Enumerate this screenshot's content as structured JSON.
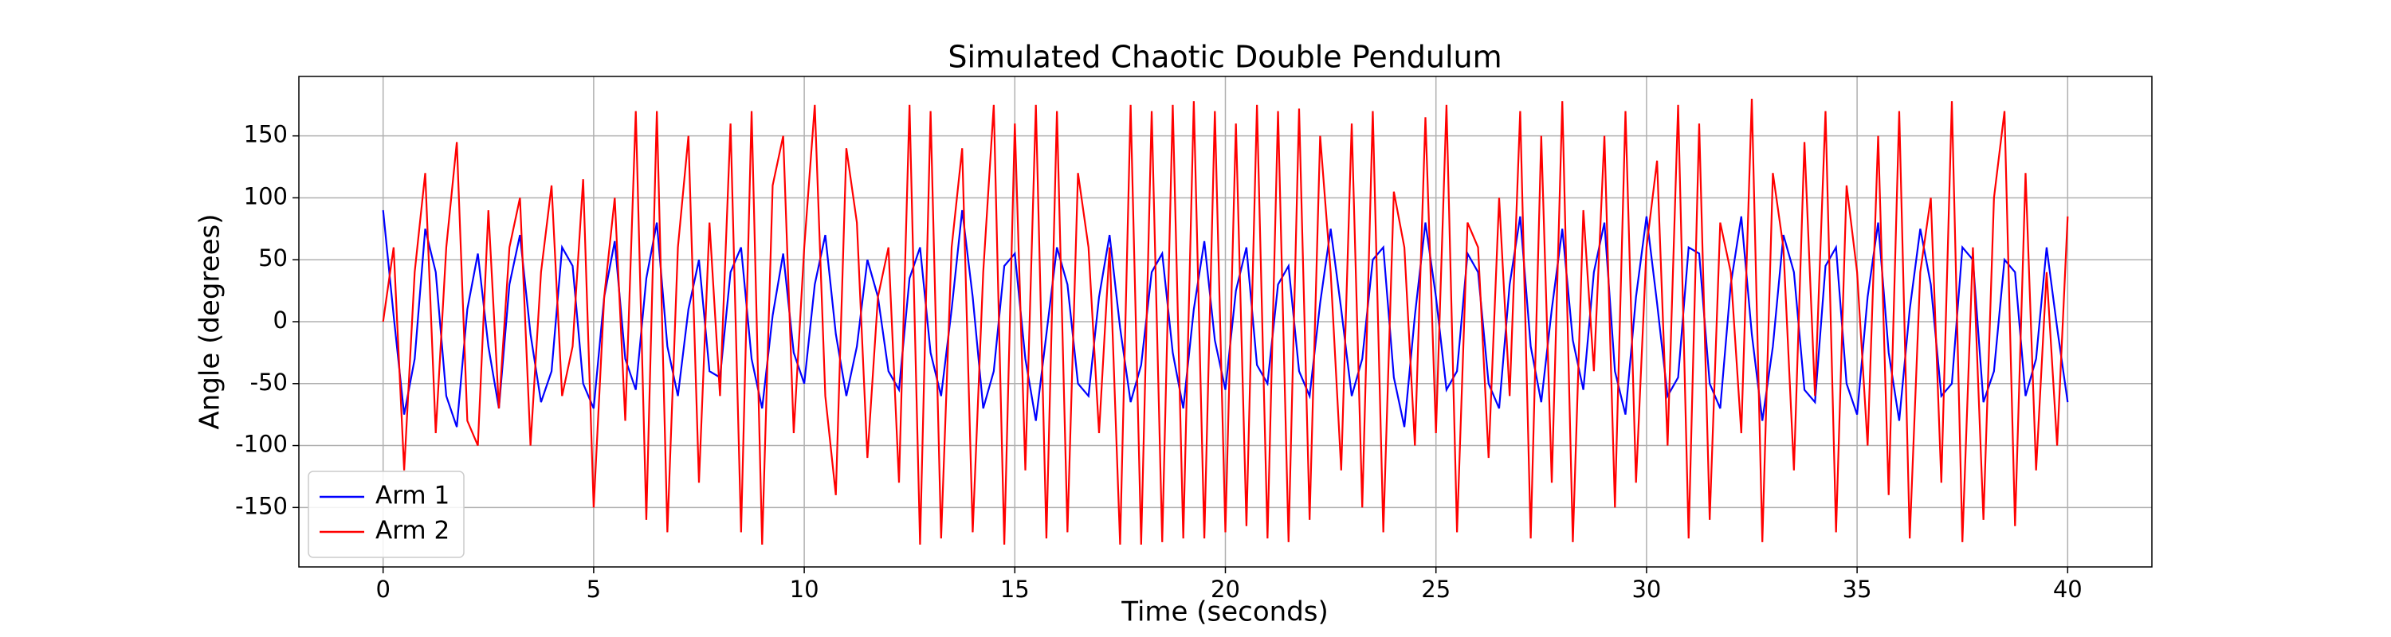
{
  "chart_data": {
    "type": "line",
    "title": "Simulated Chaotic Double Pendulum",
    "x_label": "Time (seconds)",
    "y_label": "Angle (degrees)",
    "x": [
      0,
      0.25,
      0.5,
      0.75,
      1,
      1.25,
      1.5,
      1.75,
      2,
      2.25,
      2.5,
      2.75,
      3,
      3.25,
      3.5,
      3.75,
      4,
      4.25,
      4.5,
      4.75,
      5,
      5.25,
      5.5,
      5.75,
      6,
      6.25,
      6.5,
      6.75,
      7,
      7.25,
      7.5,
      7.75,
      8,
      8.25,
      8.5,
      8.75,
      9,
      9.25,
      9.5,
      9.75,
      10,
      10.25,
      10.5,
      10.75,
      11,
      11.25,
      11.5,
      11.75,
      12,
      12.25,
      12.5,
      12.75,
      13,
      13.25,
      13.5,
      13.75,
      14,
      14.25,
      14.5,
      14.75,
      15,
      15.25,
      15.5,
      15.75,
      16,
      16.25,
      16.5,
      16.75,
      17,
      17.25,
      17.5,
      17.75,
      18,
      18.25,
      18.5,
      18.75,
      19,
      19.25,
      19.5,
      19.75,
      20,
      20.25,
      20.5,
      20.75,
      21,
      21.25,
      21.5,
      21.75,
      22,
      22.25,
      22.5,
      22.75,
      23,
      23.25,
      23.5,
      23.75,
      24,
      24.25,
      24.5,
      24.75,
      25,
      25.25,
      25.5,
      25.75,
      26,
      26.25,
      26.5,
      26.75,
      27,
      27.25,
      27.5,
      27.75,
      28,
      28.25,
      28.5,
      28.75,
      29,
      29.25,
      29.5,
      29.75,
      30,
      30.25,
      30.5,
      30.75,
      31,
      31.25,
      31.5,
      31.75,
      32,
      32.25,
      32.5,
      32.75,
      33,
      33.25,
      33.5,
      33.75,
      34,
      34.25,
      34.5,
      34.75,
      35,
      35.25,
      35.5,
      35.75,
      36,
      36.25,
      36.5,
      36.75,
      37,
      37.25,
      37.5,
      37.75,
      38,
      38.25,
      38.5,
      38.75,
      39,
      39.25,
      39.5,
      39.75,
      40
    ],
    "series": [
      {
        "name": "Arm 1",
        "color": "#0000ff",
        "values": [
          90,
          5,
          -75,
          -30,
          75,
          40,
          -60,
          -85,
          10,
          55,
          -20,
          -70,
          30,
          70,
          -10,
          -65,
          -40,
          60,
          45,
          -50,
          -70,
          20,
          65,
          -30,
          -55,
          35,
          80,
          -20,
          -60,
          10,
          50,
          -40,
          -45,
          40,
          60,
          -30,
          -70,
          5,
          55,
          -25,
          -50,
          30,
          70,
          -10,
          -60,
          -20,
          50,
          20,
          -40,
          -55,
          35,
          60,
          -25,
          -60,
          10,
          90,
          20,
          -70,
          -40,
          45,
          55,
          -30,
          -80,
          -10,
          60,
          30,
          -50,
          -60,
          20,
          70,
          -5,
          -65,
          -35,
          40,
          55,
          -25,
          -70,
          10,
          65,
          -15,
          -55,
          25,
          60,
          -35,
          -50,
          30,
          45,
          -40,
          -60,
          15,
          75,
          10,
          -60,
          -30,
          50,
          60,
          -45,
          -85,
          5,
          80,
          20,
          -55,
          -40,
          55,
          40,
          -50,
          -70,
          30,
          85,
          -20,
          -65,
          10,
          75,
          -15,
          -55,
          40,
          80,
          -40,
          -75,
          20,
          85,
          15,
          -60,
          -45,
          60,
          55,
          -50,
          -70,
          30,
          85,
          -10,
          -80,
          -20,
          70,
          40,
          -55,
          -65,
          45,
          60,
          -50,
          -75,
          20,
          80,
          -25,
          -80,
          10,
          75,
          30,
          -60,
          -50,
          60,
          50,
          -65,
          -40,
          50,
          40,
          -60,
          -30,
          60,
          -5,
          -65
        ]
      },
      {
        "name": "Arm 2",
        "color": "#ff0000",
        "values": [
          0,
          60,
          -120,
          40,
          120,
          -90,
          60,
          145,
          -80,
          -100,
          90,
          -70,
          60,
          100,
          -100,
          40,
          110,
          -60,
          -20,
          115,
          -150,
          20,
          100,
          -80,
          170,
          -160,
          170,
          -170,
          60,
          150,
          -130,
          80,
          -60,
          160,
          -170,
          170,
          -180,
          110,
          150,
          -90,
          60,
          175,
          -60,
          -140,
          140,
          80,
          -110,
          20,
          60,
          -130,
          175,
          -180,
          170,
          -175,
          60,
          140,
          -170,
          40,
          175,
          -180,
          160,
          -120,
          175,
          -175,
          170,
          -170,
          120,
          60,
          -90,
          60,
          -180,
          175,
          -180,
          170,
          -178,
          175,
          -175,
          178,
          -175,
          170,
          -170,
          160,
          -165,
          175,
          -175,
          170,
          -178,
          172,
          -160,
          150,
          40,
          -120,
          160,
          -150,
          170,
          -170,
          105,
          60,
          -100,
          165,
          -90,
          175,
          -170,
          80,
          60,
          -110,
          100,
          -60,
          170,
          -175,
          150,
          -130,
          178,
          -178,
          90,
          -40,
          150,
          -150,
          170,
          -130,
          60,
          130,
          -100,
          175,
          -175,
          160,
          -160,
          80,
          40,
          -90,
          180,
          -178,
          120,
          60,
          -120,
          145,
          -60,
          170,
          -170,
          110,
          40,
          -100,
          150,
          -140,
          170,
          -175,
          40,
          100,
          -130,
          178,
          -178,
          60,
          -160,
          100,
          170,
          -165,
          120,
          -120,
          40,
          -100,
          85
        ]
      }
    ],
    "xlim": [
      -2,
      42
    ],
    "ylim": [
      -198,
      198
    ],
    "xticks": [
      0,
      5,
      10,
      15,
      20,
      25,
      30,
      35,
      40
    ],
    "yticks": [
      -150,
      -100,
      -50,
      0,
      50,
      100,
      150
    ],
    "grid": true,
    "legend": "lower left"
  }
}
